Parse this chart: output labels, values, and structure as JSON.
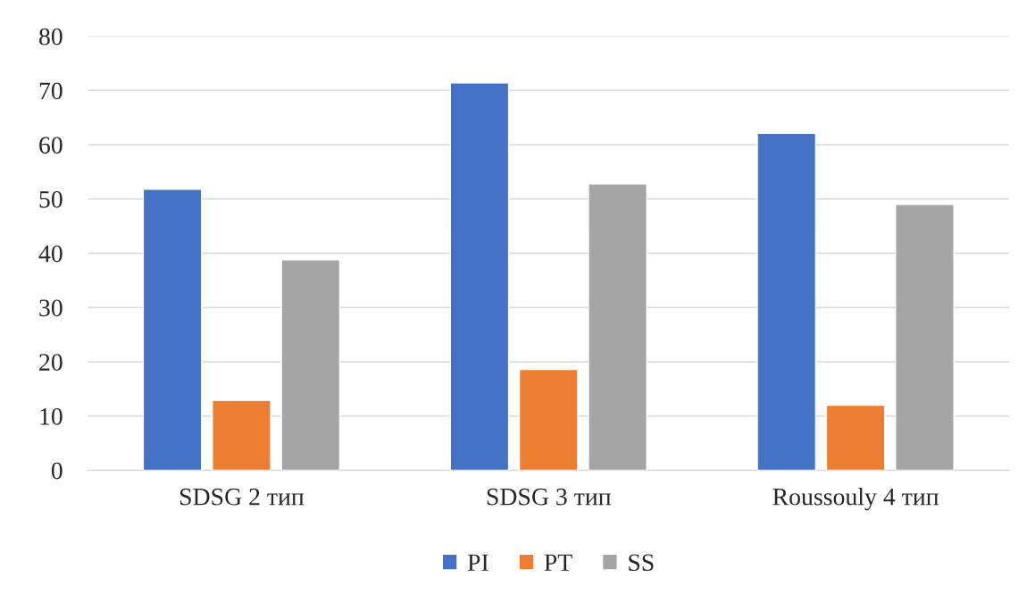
{
  "chart_data": {
    "type": "bar",
    "categories": [
      "SDSG 2 тип",
      "SDSG 3 тип",
      "Roussouly 4 тип"
    ],
    "series": [
      {
        "name": "PI",
        "color": "#4472c4",
        "values": [
          51.8,
          71.4,
          62.1
        ]
      },
      {
        "name": "PT",
        "color": "#ed7d31",
        "values": [
          12.9,
          18.6,
          12.0
        ]
      },
      {
        "name": "SS",
        "color": "#a5a5a5",
        "values": [
          38.8,
          52.8,
          49.0
        ]
      }
    ],
    "ylim": [
      0,
      80
    ],
    "yticks": [
      0,
      10,
      20,
      30,
      40,
      50,
      60,
      70,
      80
    ],
    "grid": "y",
    "legend": "bottom"
  }
}
